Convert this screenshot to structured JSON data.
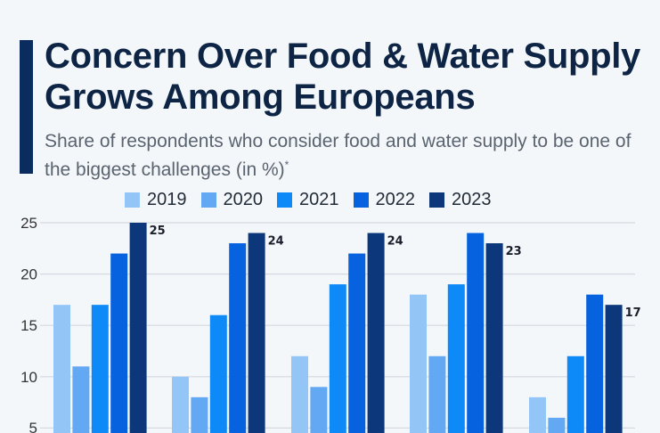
{
  "header": {
    "title": "Concern Over Food & Water Supply Grows Among Europeans",
    "subtitle": "Share of respondents who consider food and water supply to be one of the biggest challenges (in %)",
    "subtitle_marker": "*"
  },
  "chart_data": {
    "type": "bar",
    "title": "Concern Over Food & Water Supply Grows Among Europeans",
    "subtitle": "Share of respondents who consider food and water supply to be one of the biggest challenges (in %)*",
    "xlabel": "",
    "ylabel": "",
    "ylim": [
      0,
      25
    ],
    "yticks": [
      5,
      10,
      15,
      20,
      25
    ],
    "grid": true,
    "legend_position": "top",
    "series": [
      {
        "name": "2019",
        "color": "#93c6f7",
        "values": [
          17,
          10,
          12,
          18,
          8
        ]
      },
      {
        "name": "2020",
        "color": "#63a8f3",
        "values": [
          11,
          8,
          9,
          12,
          6
        ]
      },
      {
        "name": "2021",
        "color": "#0d8af8",
        "values": [
          17,
          16,
          19,
          19,
          12
        ]
      },
      {
        "name": "2022",
        "color": "#0762df",
        "values": [
          22,
          23,
          22,
          24,
          18
        ]
      },
      {
        "name": "2023",
        "color": "#0c377a",
        "values": [
          25,
          24,
          24,
          23,
          17
        ]
      }
    ],
    "data_labels_series": "2023"
  }
}
